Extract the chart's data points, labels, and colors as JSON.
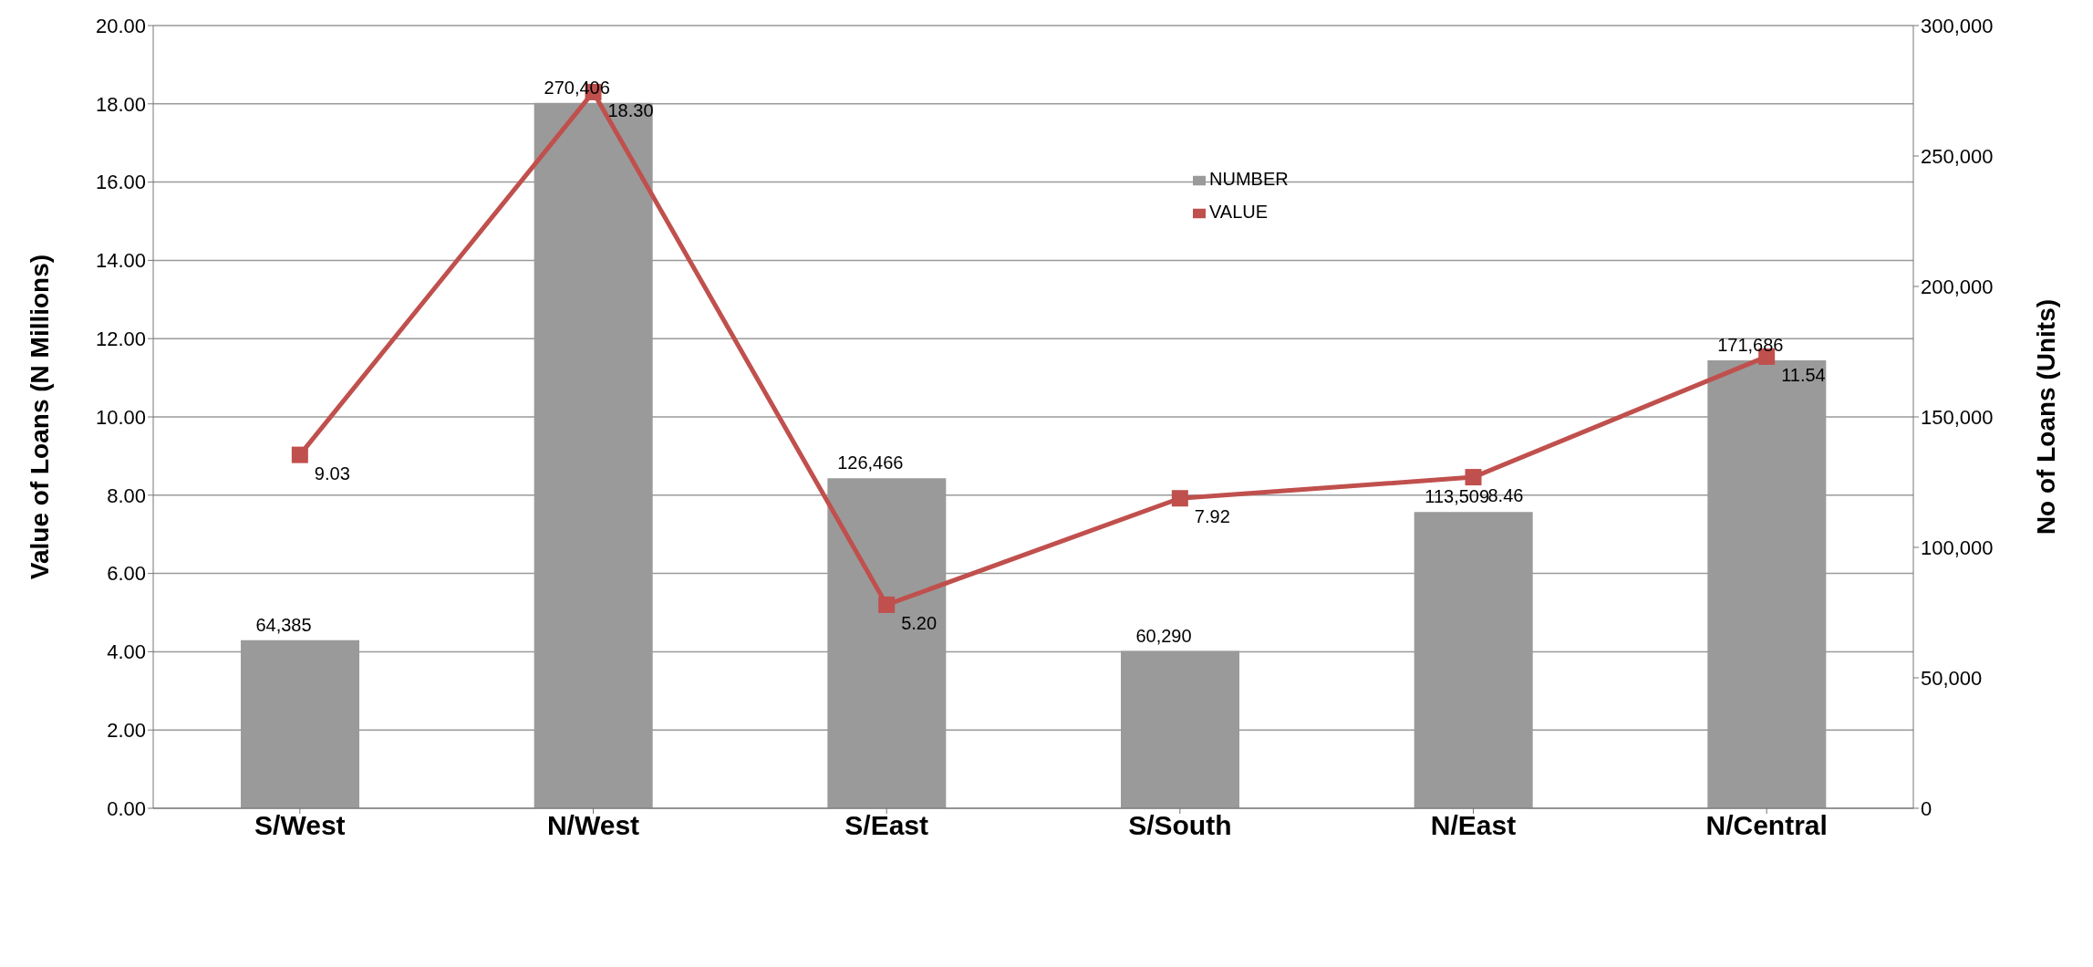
{
  "chart_data": {
    "type": "bar",
    "ylabel": "Value of Loans (N Millions)",
    "y2label": "No of Loans (Units)",
    "categories": [
      "S/West",
      "N/West",
      "S/East",
      "S/South",
      "N/East",
      "N/Central"
    ],
    "series": [
      {
        "name": "NUMBER",
        "axis": "y2",
        "color": "#9a9a9a",
        "values": [
          64385,
          270406,
          126466,
          60290,
          113509,
          171686
        ],
        "value_labels": [
          "64,385",
          "270,406",
          "126,466",
          "60,290",
          "113,509",
          "171,686"
        ]
      },
      {
        "name": "VALUE",
        "type": "line",
        "axis": "y",
        "color": "#c0504d",
        "marker": "square",
        "values": [
          9.03,
          18.3,
          5.2,
          7.92,
          8.46,
          11.54
        ],
        "value_labels": [
          "9.03",
          "18.30",
          "5.20",
          "7.92",
          "8.46",
          "11.54"
        ]
      }
    ],
    "ylim": [
      0,
      20
    ],
    "yticks": [
      {
        "value": 0,
        "label": "0.00"
      },
      {
        "value": 2,
        "label": "2.00"
      },
      {
        "value": 4,
        "label": "4.00"
      },
      {
        "value": 6,
        "label": "6.00"
      },
      {
        "value": 8,
        "label": "8.00"
      },
      {
        "value": 10,
        "label": "10.00"
      },
      {
        "value": 12,
        "label": "12.00"
      },
      {
        "value": 14,
        "label": "14.00"
      },
      {
        "value": 16,
        "label": "16.00"
      },
      {
        "value": 18,
        "label": "18.00"
      },
      {
        "value": 20,
        "label": "20.00"
      }
    ],
    "y2lim": [
      0,
      300000
    ],
    "y2ticks": [
      0,
      {
        "value": 50000,
        "label": "50,000"
      },
      {
        "value": 100000,
        "label": "100,000"
      },
      {
        "value": 150000,
        "label": "150,000"
      },
      {
        "value": 200000,
        "label": "200,000"
      },
      {
        "value": 250000,
        "label": "250,000"
      },
      {
        "value": 300000,
        "label": "300,000"
      }
    ],
    "grid": "y",
    "legend": "top"
  }
}
